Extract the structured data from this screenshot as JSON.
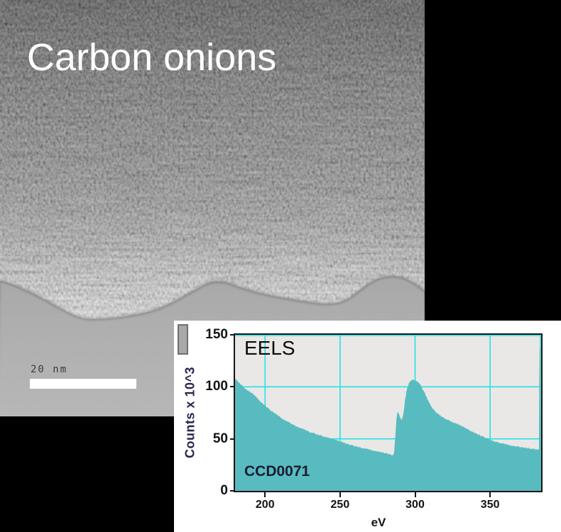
{
  "canvas": {
    "background": "#000000"
  },
  "tem_image": {
    "title": "Carbon onions",
    "scale_bar_label": "20 nm",
    "vacuum_color": "#b2b2b2"
  },
  "eels_panel": {
    "background": "#ffffff",
    "marker_swatch_color": "#a8a8a8",
    "chart_data": {
      "type": "area",
      "title": "EELS",
      "annotation": "CCD0071",
      "xlabel": "eV",
      "ylabel": "Counts x 10^3",
      "xlim": [
        180,
        384
      ],
      "ylim": [
        0,
        150
      ],
      "x_ticks": [
        200,
        250,
        300,
        350
      ],
      "y_ticks": [
        0,
        50,
        100,
        150
      ],
      "gridlines_x": [
        200,
        250,
        300,
        350,
        384
      ],
      "gridlines_y": [
        50,
        100,
        150
      ],
      "grid_on": true,
      "grid_color": "#25e2e8",
      "plot_bg": "#e9e8e6",
      "legend_position": "none",
      "series": [
        {
          "name": "spectrum",
          "color": "#58bbbf",
          "noise": 0.7,
          "points": [
            [
              180,
              108
            ],
            [
              182,
              105
            ],
            [
              184,
              102
            ],
            [
              186,
              99
            ],
            [
              189,
              96
            ],
            [
              193,
              92
            ],
            [
              196,
              87
            ],
            [
              200,
              82
            ],
            [
              204,
              77
            ],
            [
              208,
              73
            ],
            [
              212,
              69
            ],
            [
              216,
              66
            ],
            [
              220,
              62.5
            ],
            [
              225,
              59.5
            ],
            [
              230,
              56.5
            ],
            [
              235,
              54
            ],
            [
              240,
              52
            ],
            [
              245,
              50
            ],
            [
              250,
              47.5
            ],
            [
              255,
              45
            ],
            [
              260,
              43
            ],
            [
              265,
              41
            ],
            [
              270,
              39.5
            ],
            [
              274,
              38
            ],
            [
              278,
              37
            ],
            [
              282,
              35.5
            ],
            [
              285,
              34
            ],
            [
              286,
              36
            ],
            [
              286.8,
              52
            ],
            [
              287.6,
              70
            ],
            [
              288.3,
              76.5
            ],
            [
              289,
              75
            ],
            [
              290,
              71
            ],
            [
              290.8,
              68
            ],
            [
              291.6,
              70
            ],
            [
              292.4,
              76
            ],
            [
              293.4,
              88
            ],
            [
              294.6,
              98
            ],
            [
              296,
              104
            ],
            [
              297.5,
              106.5
            ],
            [
              299,
              107
            ],
            [
              300.5,
              105.5
            ],
            [
              302,
              104.5
            ],
            [
              303.5,
              102
            ],
            [
              305,
              98
            ],
            [
              306.5,
              94
            ],
            [
              308,
              89
            ],
            [
              310,
              83
            ],
            [
              312,
              78.5
            ],
            [
              314,
              75.5
            ],
            [
              316,
              73
            ],
            [
              318,
              71
            ],
            [
              320,
              69.5
            ],
            [
              322,
              68
            ],
            [
              325,
              66
            ],
            [
              328,
              64.5
            ],
            [
              331,
              62.5
            ],
            [
              334,
              60
            ],
            [
              337,
              57.5
            ],
            [
              340,
              55.5
            ],
            [
              343,
              53.5
            ],
            [
              346,
              51.5
            ],
            [
              350,
              49
            ],
            [
              354,
              47
            ],
            [
              358,
              45.5
            ],
            [
              362,
              44.3
            ],
            [
              366,
              43.2
            ],
            [
              370,
              42.2
            ],
            [
              374,
              41.2
            ],
            [
              378,
              40.4
            ],
            [
              381,
              40
            ],
            [
              382.6,
              39.8
            ],
            [
              382.9,
              138
            ],
            [
              383.6,
              138
            ],
            [
              383.9,
              40
            ],
            [
              384,
              40
            ]
          ]
        }
      ]
    }
  }
}
